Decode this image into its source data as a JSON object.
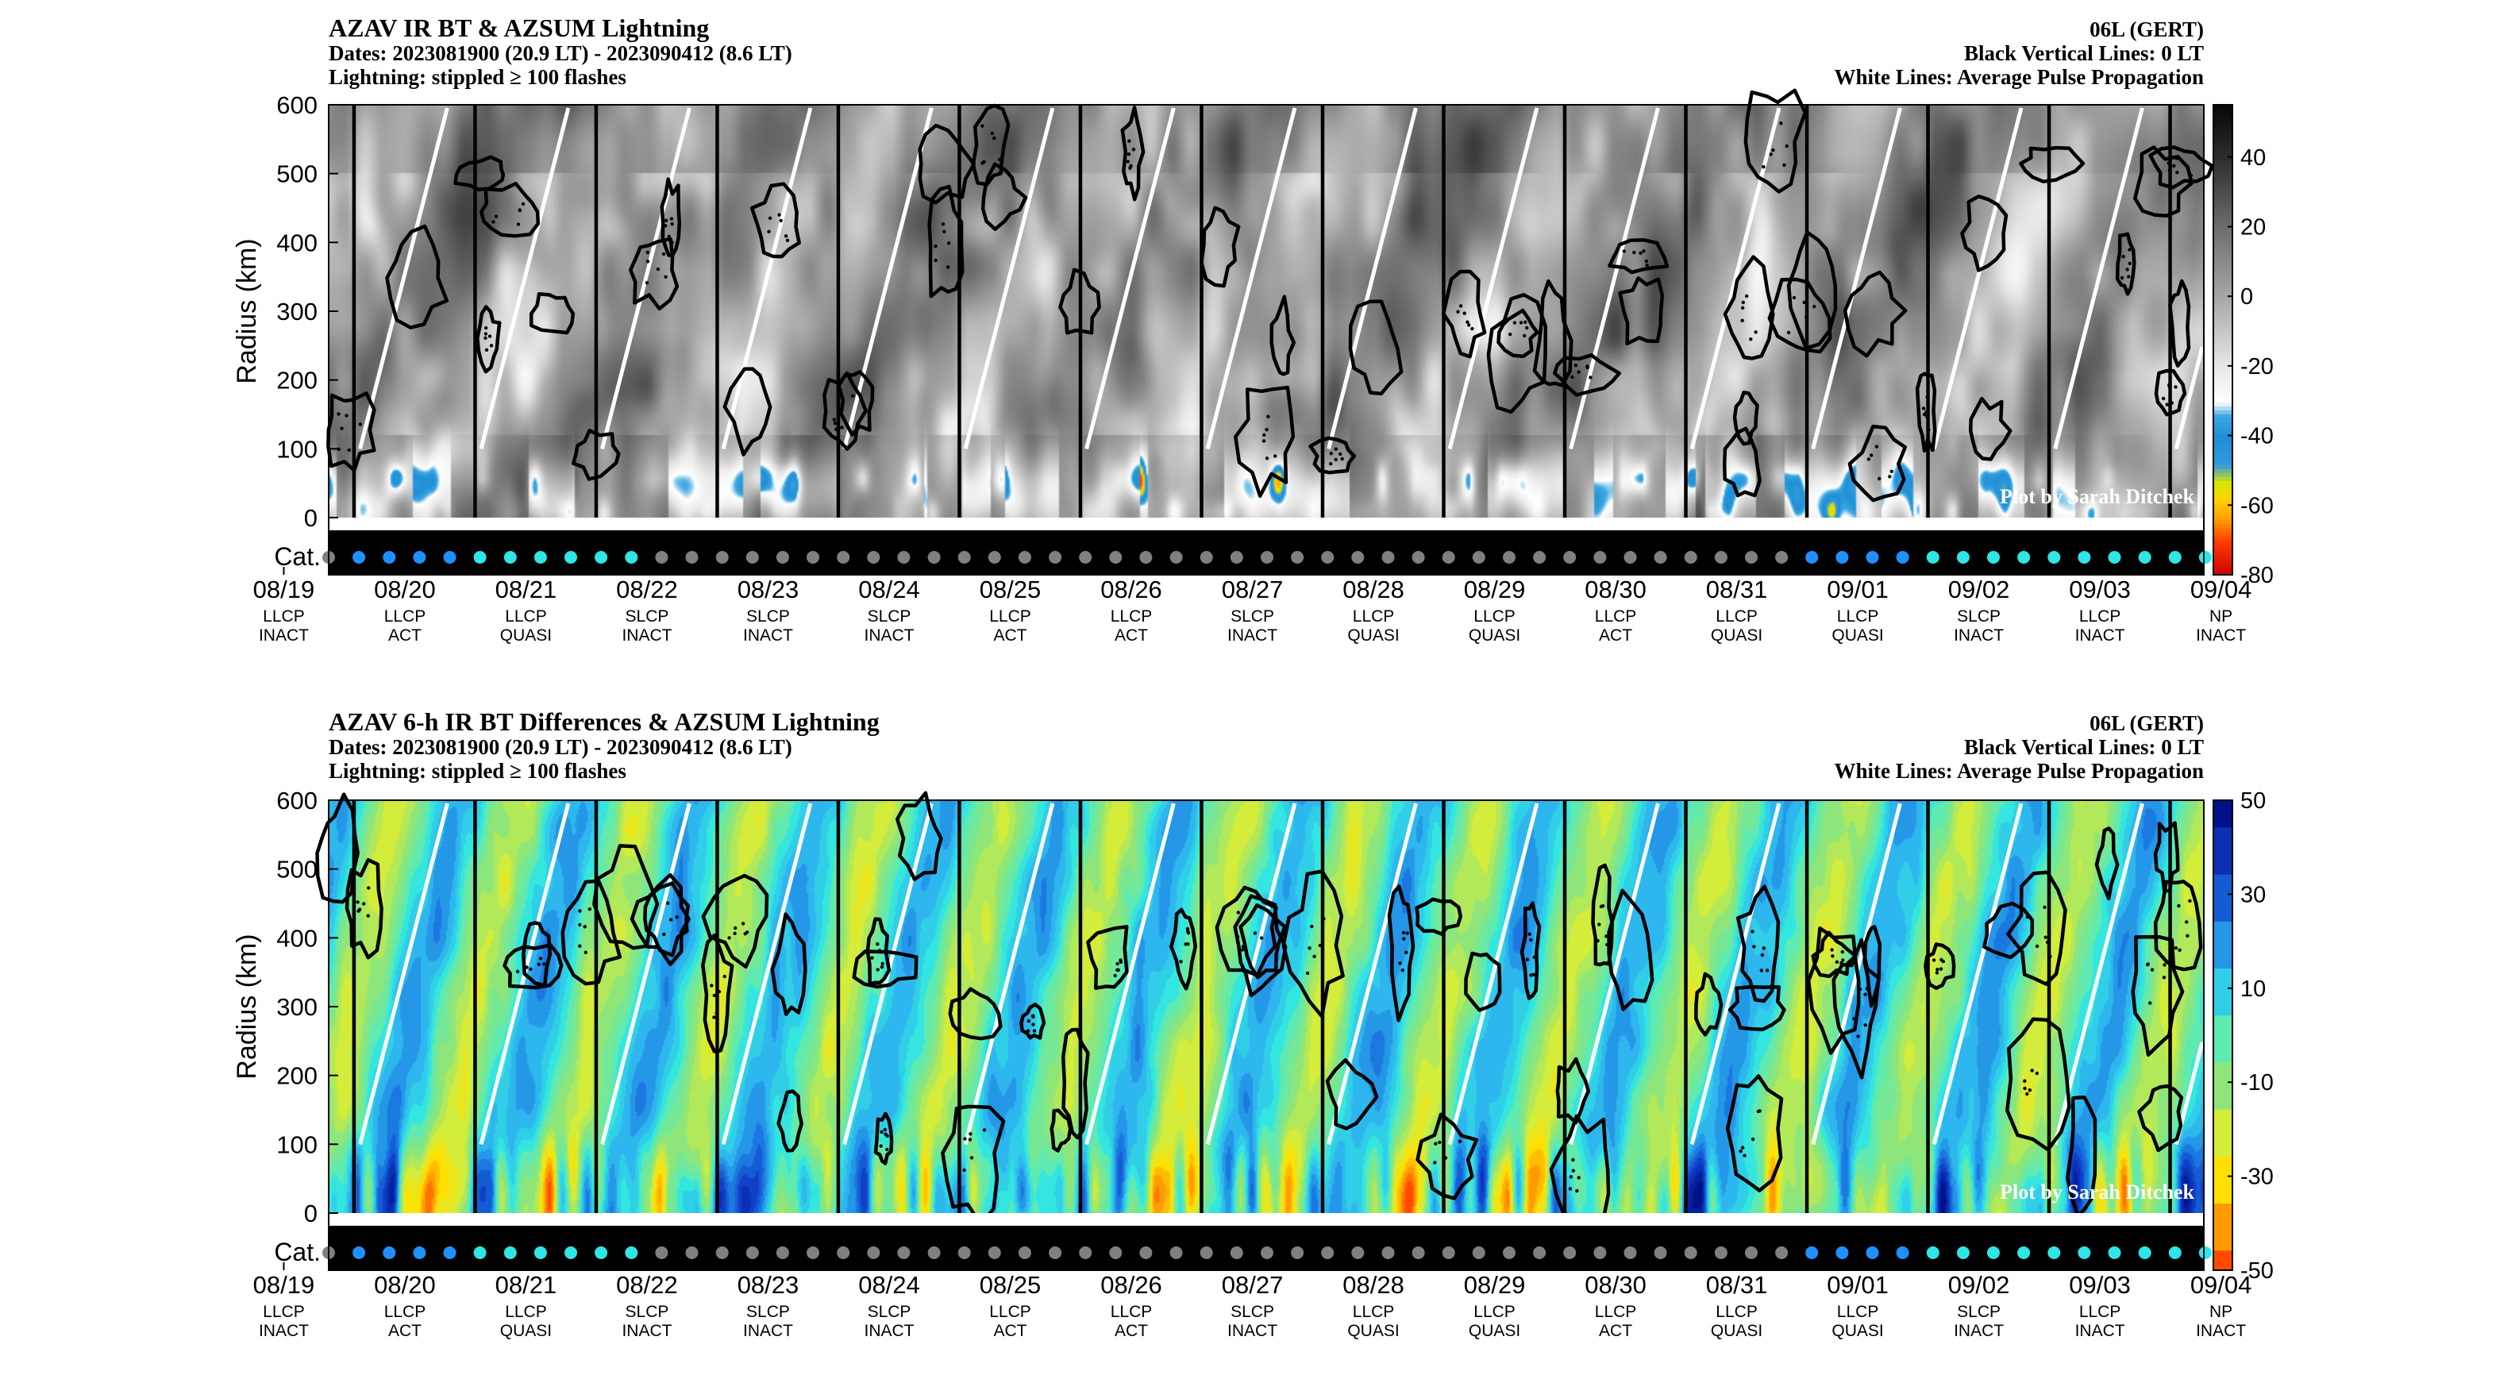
{
  "chart_data": [
    {
      "type": "heatmap",
      "title": "AZAV IR BT & AZSUM Lightning",
      "subtitle_lines": [
        "Dates: 2023081900 (20.9 LT) - 2023090412 (8.6 LT)",
        "Lightning: stippled ≥ 100 flashes"
      ],
      "right_lines": [
        "06L (GERT)",
        "Black Vertical Lines: 0 LT",
        "White Lines: Average Pulse Propagation"
      ],
      "ylabel": "Radius (km)",
      "ylim": [
        0,
        600
      ],
      "yticks": [
        0,
        100,
        200,
        300,
        400,
        500,
        600
      ],
      "category_label": "Cat.",
      "watermark": "Plot by Sarah Ditchek",
      "colorbar": {
        "ticks": [
          40,
          20,
          0,
          -20,
          -40,
          -60,
          -80
        ],
        "range": [
          -80,
          55
        ],
        "stops": [
          {
            "v": -80,
            "c": "#c80000"
          },
          {
            "v": -70,
            "c": "#ff3c00"
          },
          {
            "v": -64,
            "c": "#ff9900"
          },
          {
            "v": -58,
            "c": "#ffd200"
          },
          {
            "v": -53,
            "c": "#d8e600"
          },
          {
            "v": -48,
            "c": "#3399dd"
          },
          {
            "v": -40,
            "c": "#1f8fd6"
          },
          {
            "v": -34,
            "c": "#3aa6e0"
          },
          {
            "v": -30,
            "c": "#ffffff"
          },
          {
            "v": -20,
            "c": "#e8e8e8"
          },
          {
            "v": 0,
            "c": "#a8a8a8"
          },
          {
            "v": 20,
            "c": "#6e6e6e"
          },
          {
            "v": 40,
            "c": "#2e2e2e"
          },
          {
            "v": 55,
            "c": "#080808"
          }
        ]
      }
    },
    {
      "type": "heatmap",
      "title": "AZAV 6-h IR BT Differences & AZSUM Lightning",
      "subtitle_lines": [
        "Dates: 2023081900 (20.9 LT) - 2023090412 (8.6 LT)",
        "Lightning: stippled ≥ 100 flashes"
      ],
      "right_lines": [
        "06L (GERT)",
        "Black Vertical Lines: 0 LT",
        "White Lines: Average Pulse Propagation"
      ],
      "ylabel": "Radius (km)",
      "ylim": [
        0,
        600
      ],
      "yticks": [
        0,
        100,
        200,
        300,
        400,
        500,
        600
      ],
      "category_label": "Cat.",
      "watermark": "Plot by Sarah Ditchek",
      "colorbar": {
        "ticks": [
          50,
          30,
          10,
          -10,
          -30,
          -50
        ],
        "range": [
          -50,
          50
        ],
        "stops": [
          {
            "v": -50,
            "c": "#ff4a00"
          },
          {
            "v": -40,
            "c": "#ff9a00"
          },
          {
            "v": -30,
            "c": "#ffe000"
          },
          {
            "v": -20,
            "c": "#d4ec3a"
          },
          {
            "v": -10,
            "c": "#8ee67a"
          },
          {
            "v": 0,
            "c": "#5eeab0"
          },
          {
            "v": 5,
            "c": "#34e6e0"
          },
          {
            "v": 15,
            "c": "#2eb6ee"
          },
          {
            "v": 25,
            "c": "#1a78e0"
          },
          {
            "v": 35,
            "c": "#1040c8"
          },
          {
            "v": 50,
            "c": "#00108a"
          }
        ]
      }
    }
  ],
  "axis": {
    "days": [
      {
        "date": "08/19",
        "pulse": "LLCP",
        "state": "INACT"
      },
      {
        "date": "08/20",
        "pulse": "LLCP",
        "state": "ACT"
      },
      {
        "date": "08/21",
        "pulse": "LLCP",
        "state": "QUASI"
      },
      {
        "date": "08/22",
        "pulse": "SLCP",
        "state": "INACT"
      },
      {
        "date": "08/23",
        "pulse": "SLCP",
        "state": "INACT"
      },
      {
        "date": "08/24",
        "pulse": "SLCP",
        "state": "INACT"
      },
      {
        "date": "08/25",
        "pulse": "LLCP",
        "state": "ACT"
      },
      {
        "date": "08/26",
        "pulse": "LLCP",
        "state": "ACT"
      },
      {
        "date": "08/27",
        "pulse": "SLCP",
        "state": "INACT"
      },
      {
        "date": "08/28",
        "pulse": "LLCP",
        "state": "QUASI"
      },
      {
        "date": "08/29",
        "pulse": "LLCP",
        "state": "QUASI"
      },
      {
        "date": "08/30",
        "pulse": "LLCP",
        "state": "ACT"
      },
      {
        "date": "08/31",
        "pulse": "LLCP",
        "state": "QUASI"
      },
      {
        "date": "09/01",
        "pulse": "LLCP",
        "state": "QUASI"
      },
      {
        "date": "09/02",
        "pulse": "SLCP",
        "state": "INACT"
      },
      {
        "date": "09/03",
        "pulse": "LLCP",
        "state": "INACT"
      },
      {
        "date": "09/04",
        "pulse": "NP",
        "state": "INACT"
      }
    ],
    "category_colors": {
      "disturbance": "#808080",
      "depression": "#1e90ff",
      "storm": "#2ee6e6"
    }
  }
}
